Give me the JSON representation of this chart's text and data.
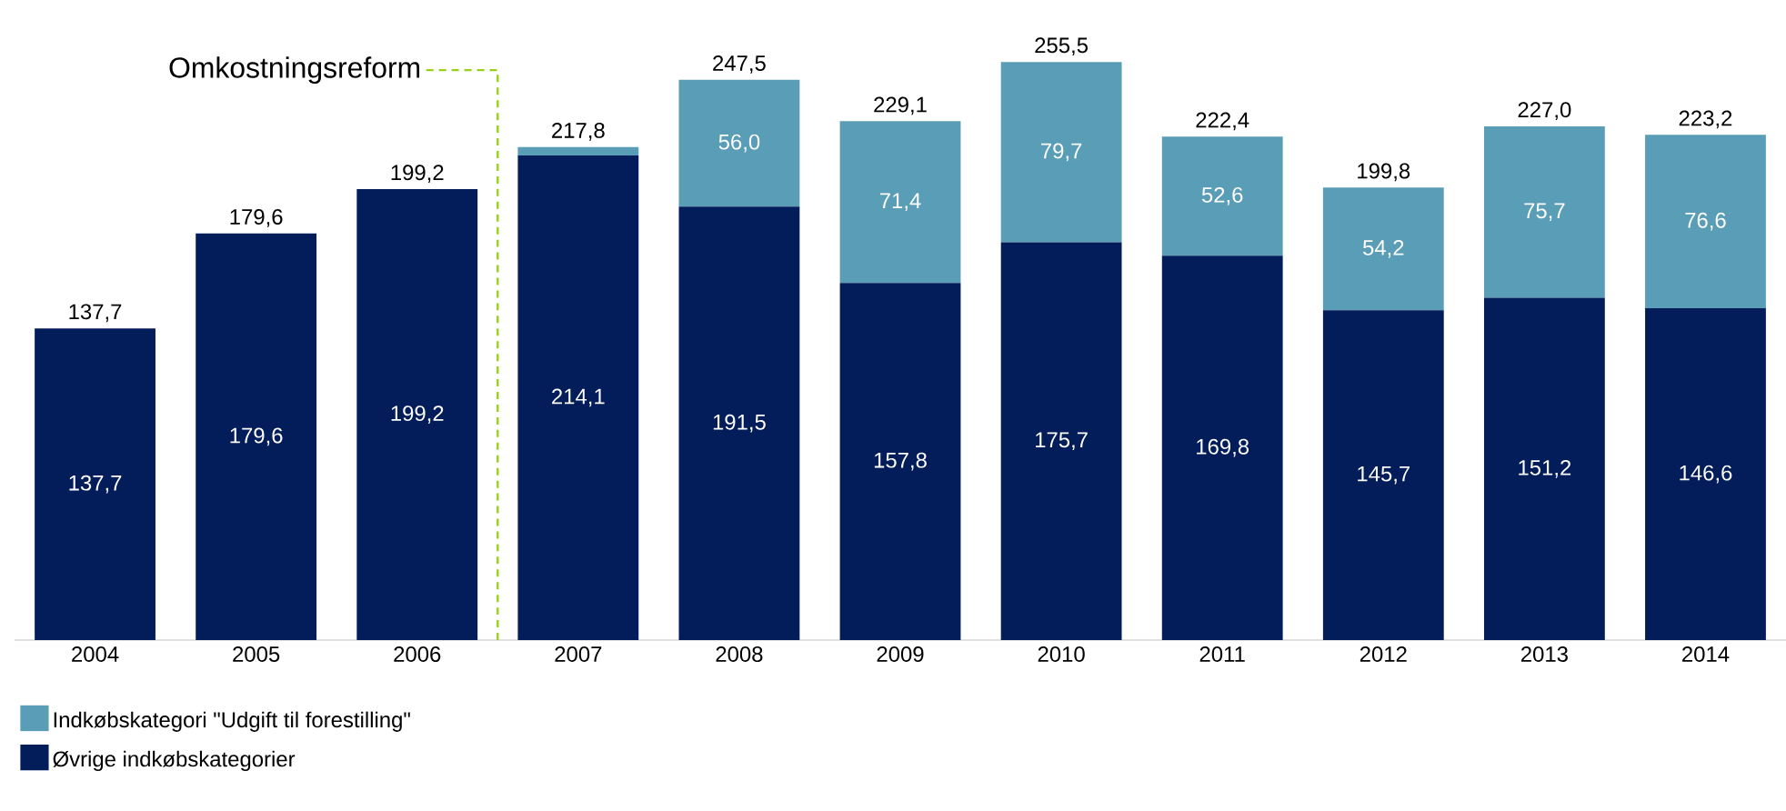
{
  "chart_data": {
    "type": "bar",
    "stacked": true,
    "categories": [
      "2004",
      "2005",
      "2006",
      "2007",
      "2008",
      "2009",
      "2010",
      "2011",
      "2012",
      "2013",
      "2014"
    ],
    "series": [
      {
        "name": "Øvrige indkøbskategorier",
        "color": "#021d5a",
        "values": [
          137.7,
          179.6,
          199.2,
          214.1,
          191.5,
          157.8,
          175.7,
          169.8,
          145.7,
          151.2,
          146.6
        ],
        "value_labels": [
          "137,7",
          "179,6",
          "199,2",
          "214,1",
          "191,5",
          "157,8",
          "175,7",
          "169,8",
          "145,7",
          "151,2",
          "146,6"
        ]
      },
      {
        "name": "Indkøbskategori \"Udgift til forestilling\"",
        "color": "#5a9db6",
        "values": [
          null,
          null,
          null,
          3.7,
          56.0,
          71.4,
          79.7,
          52.6,
          54.2,
          75.7,
          76.6
        ],
        "value_labels": [
          null,
          null,
          null,
          null,
          "56,0",
          "71,4",
          "79,7",
          "52,6",
          "54,2",
          "75,7",
          "76,6"
        ]
      }
    ],
    "totals": [
      "137,7",
      "179,6",
      "199,2",
      "217,8",
      "247,5",
      "229,1",
      "255,5",
      "222,4",
      "199,8",
      "227,0",
      "223,2"
    ],
    "tick_labels": "x",
    "legend": "bottom left",
    "annotations": [
      "Omkostningsreform"
    ]
  }
}
